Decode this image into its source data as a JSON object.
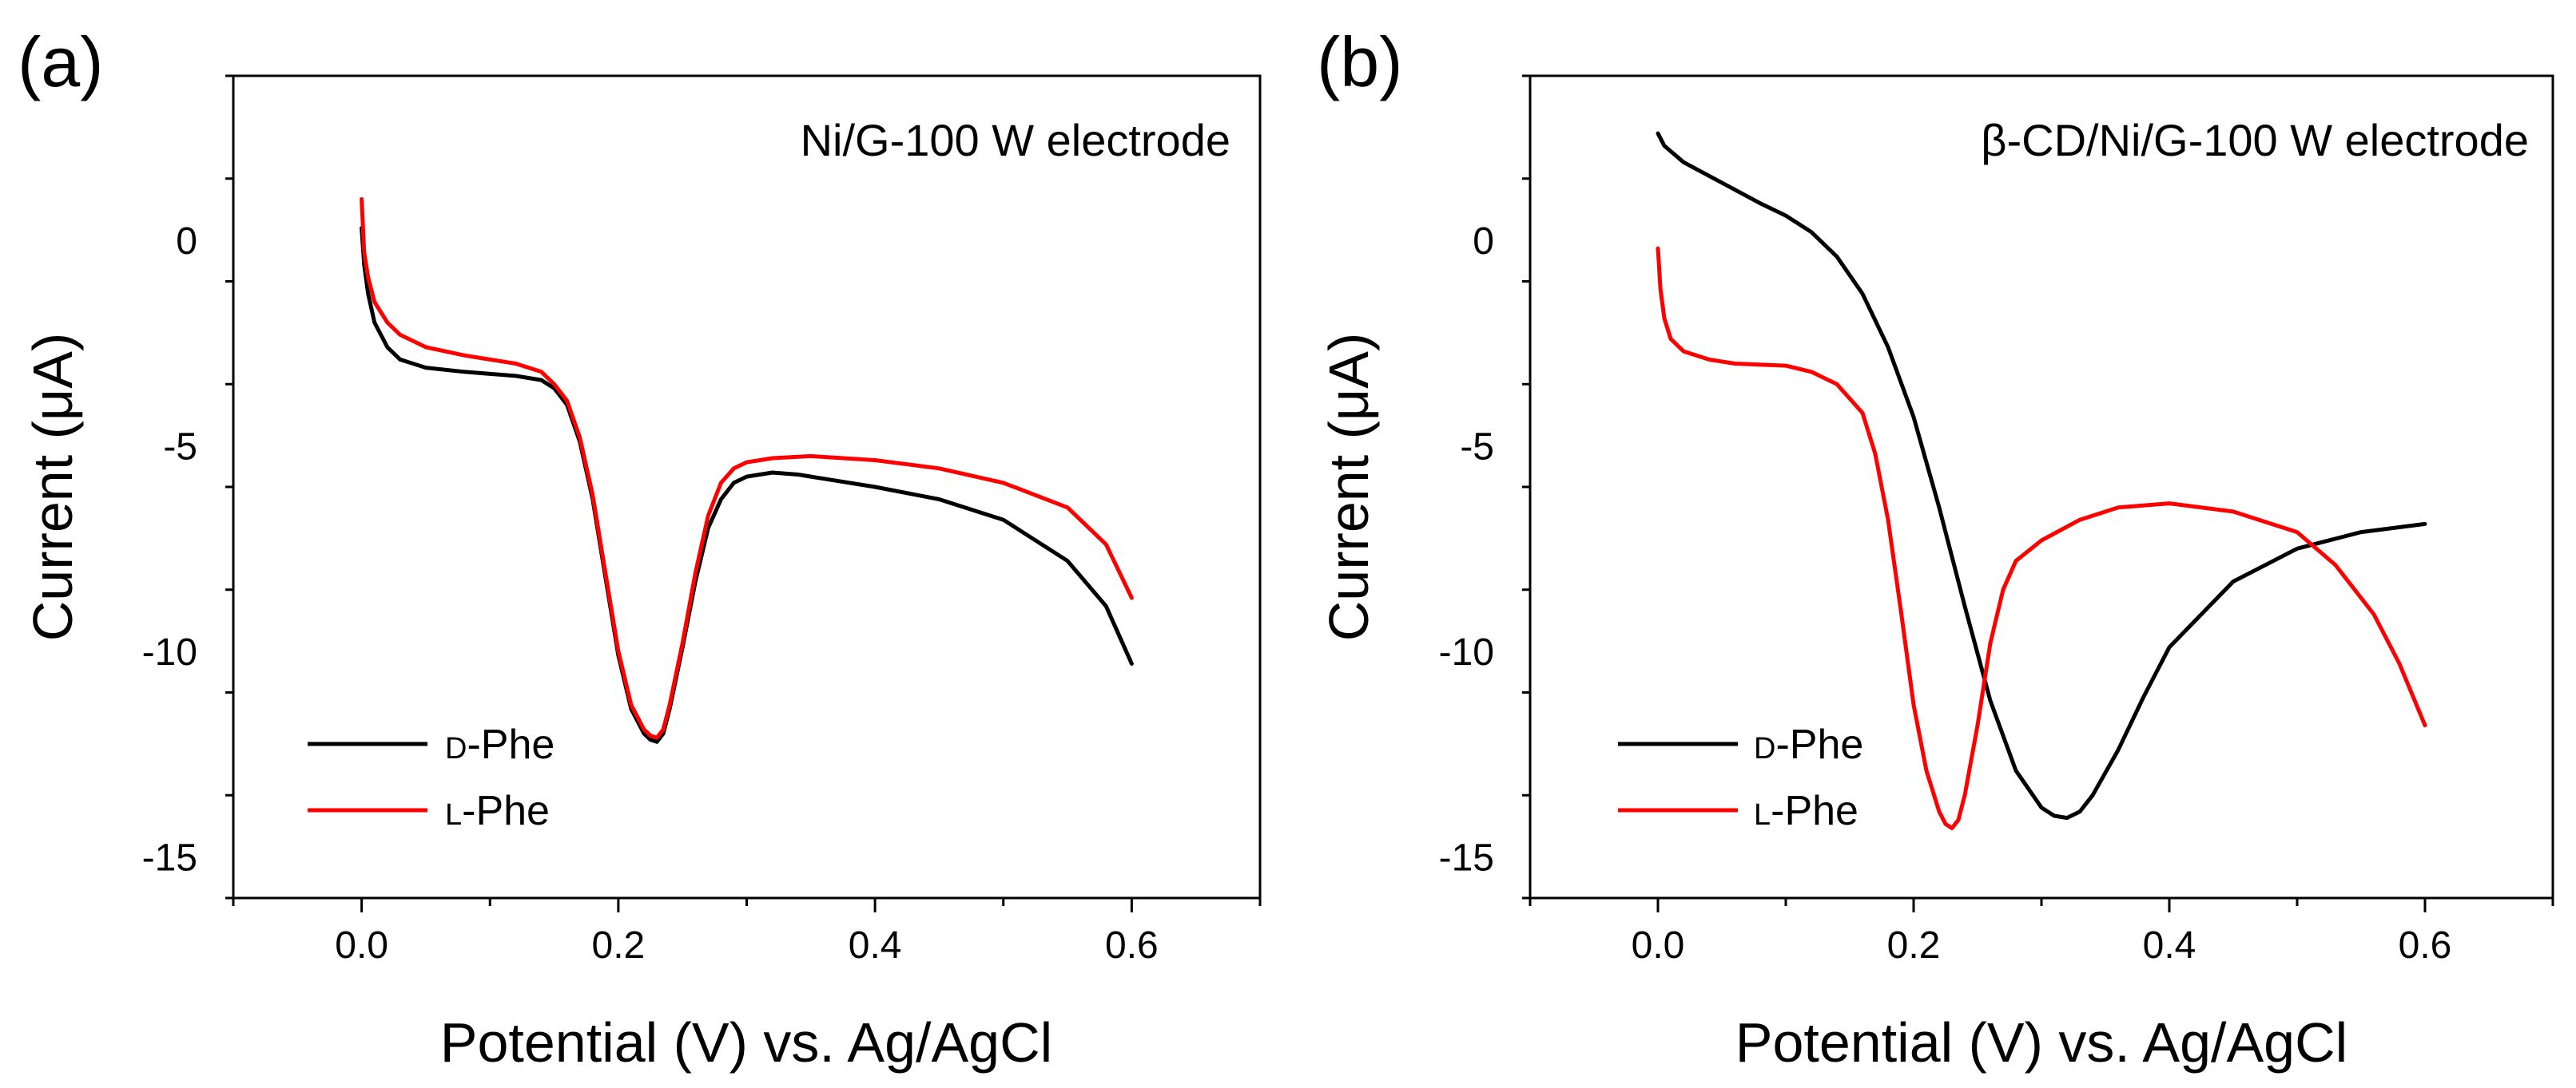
{
  "chart_data": [
    {
      "type": "line",
      "panel_label": "(a)",
      "title": "Ni/G-100 W electrode",
      "xlabel": "Potential (V) vs. Ag/AgCl",
      "ylabel": "Current (μA)",
      "xlim": [
        -0.1,
        0.7
      ],
      "ylim": [
        -16,
        4
      ],
      "xticks": [
        0.0,
        0.2,
        0.4,
        0.6
      ],
      "xtick_labels": [
        "0.0",
        "0.2",
        "0.4",
        "0.6"
      ],
      "yticks": [
        0,
        -5,
        -10,
        -15
      ],
      "ytick_labels": [
        "0",
        "-5",
        "-10",
        "-15"
      ],
      "legend_position": "bottom-left",
      "series": [
        {
          "name": "D-Phe",
          "legend_prefix": "D",
          "legend_suffix": "-Phe",
          "color": "#000000",
          "x": [
            0.0,
            0.002,
            0.005,
            0.01,
            0.02,
            0.03,
            0.05,
            0.08,
            0.1,
            0.12,
            0.14,
            0.15,
            0.16,
            0.17,
            0.18,
            0.19,
            0.2,
            0.21,
            0.22,
            0.225,
            0.23,
            0.235,
            0.24,
            0.25,
            0.26,
            0.27,
            0.28,
            0.29,
            0.3,
            0.32,
            0.34,
            0.36,
            0.4,
            0.45,
            0.5,
            0.55,
            0.58,
            0.6
          ],
          "y": [
            0.3,
            -0.6,
            -1.3,
            -2.0,
            -2.6,
            -2.9,
            -3.1,
            -3.2,
            -3.25,
            -3.3,
            -3.4,
            -3.6,
            -4.0,
            -4.9,
            -6.3,
            -8.2,
            -10.1,
            -11.4,
            -12.0,
            -12.15,
            -12.2,
            -12.0,
            -11.4,
            -9.9,
            -8.3,
            -7.0,
            -6.3,
            -5.9,
            -5.75,
            -5.65,
            -5.7,
            -5.8,
            -6.0,
            -6.3,
            -6.8,
            -7.8,
            -8.9,
            -10.3
          ]
        },
        {
          "name": "L-Phe",
          "legend_prefix": "L",
          "legend_suffix": "-Phe",
          "color": "#ff0000",
          "x": [
            0.0,
            0.002,
            0.005,
            0.01,
            0.02,
            0.03,
            0.05,
            0.08,
            0.1,
            0.12,
            0.14,
            0.15,
            0.16,
            0.17,
            0.18,
            0.19,
            0.2,
            0.21,
            0.22,
            0.225,
            0.23,
            0.235,
            0.24,
            0.25,
            0.26,
            0.27,
            0.28,
            0.29,
            0.3,
            0.32,
            0.35,
            0.4,
            0.45,
            0.5,
            0.55,
            0.58,
            0.6
          ],
          "y": [
            1.0,
            -0.3,
            -0.9,
            -1.5,
            -2.0,
            -2.3,
            -2.6,
            -2.8,
            -2.9,
            -3.0,
            -3.2,
            -3.5,
            -3.9,
            -4.8,
            -6.2,
            -8.1,
            -10.0,
            -11.3,
            -11.9,
            -12.05,
            -12.1,
            -11.9,
            -11.3,
            -9.8,
            -8.1,
            -6.7,
            -5.9,
            -5.55,
            -5.4,
            -5.3,
            -5.25,
            -5.35,
            -5.55,
            -5.9,
            -6.5,
            -7.4,
            -8.7
          ]
        }
      ]
    },
    {
      "type": "line",
      "panel_label": "(b)",
      "title": "β-CD/Ni/G-100 W electrode",
      "xlabel": "Potential (V) vs. Ag/AgCl",
      "ylabel": "Current (μA)",
      "xlim": [
        -0.1,
        0.7
      ],
      "ylim": [
        -16,
        4
      ],
      "xticks": [
        0.0,
        0.2,
        0.4,
        0.6
      ],
      "xtick_labels": [
        "0.0",
        "0.2",
        "0.4",
        "0.6"
      ],
      "yticks": [
        0,
        -5,
        -10,
        -15
      ],
      "ytick_labels": [
        "0",
        "-5",
        "-10",
        "-15"
      ],
      "legend_position": "bottom-left",
      "series": [
        {
          "name": "D-Phe",
          "legend_prefix": "D",
          "legend_suffix": "-Phe",
          "color": "#000000",
          "x": [
            0.0,
            0.005,
            0.02,
            0.05,
            0.08,
            0.1,
            0.12,
            0.14,
            0.16,
            0.18,
            0.2,
            0.22,
            0.24,
            0.26,
            0.28,
            0.3,
            0.31,
            0.32,
            0.33,
            0.34,
            0.36,
            0.38,
            0.4,
            0.45,
            0.5,
            0.55,
            0.6
          ],
          "y": [
            2.6,
            2.3,
            1.9,
            1.4,
            0.9,
            0.6,
            0.2,
            -0.4,
            -1.3,
            -2.6,
            -4.3,
            -6.5,
            -8.9,
            -11.2,
            -12.9,
            -13.8,
            -14.0,
            -14.05,
            -13.9,
            -13.5,
            -12.4,
            -11.1,
            -9.9,
            -8.3,
            -7.5,
            -7.1,
            -6.9
          ]
        },
        {
          "name": "L-Phe",
          "legend_prefix": "L",
          "legend_suffix": "-Phe",
          "color": "#ff0000",
          "x": [
            0.0,
            0.002,
            0.005,
            0.01,
            0.02,
            0.04,
            0.06,
            0.1,
            0.12,
            0.14,
            0.16,
            0.17,
            0.18,
            0.19,
            0.2,
            0.21,
            0.22,
            0.225,
            0.23,
            0.235,
            0.24,
            0.25,
            0.26,
            0.27,
            0.28,
            0.3,
            0.33,
            0.36,
            0.4,
            0.45,
            0.5,
            0.53,
            0.56,
            0.58,
            0.6
          ],
          "y": [
            -0.2,
            -1.2,
            -1.9,
            -2.4,
            -2.7,
            -2.9,
            -3.0,
            -3.05,
            -3.2,
            -3.5,
            -4.2,
            -5.2,
            -6.8,
            -9.0,
            -11.3,
            -12.9,
            -13.9,
            -14.2,
            -14.3,
            -14.1,
            -13.5,
            -11.8,
            -9.8,
            -8.5,
            -7.8,
            -7.3,
            -6.8,
            -6.5,
            -6.4,
            -6.6,
            -7.1,
            -7.9,
            -9.1,
            -10.3,
            -11.8
          ]
        }
      ]
    }
  ]
}
